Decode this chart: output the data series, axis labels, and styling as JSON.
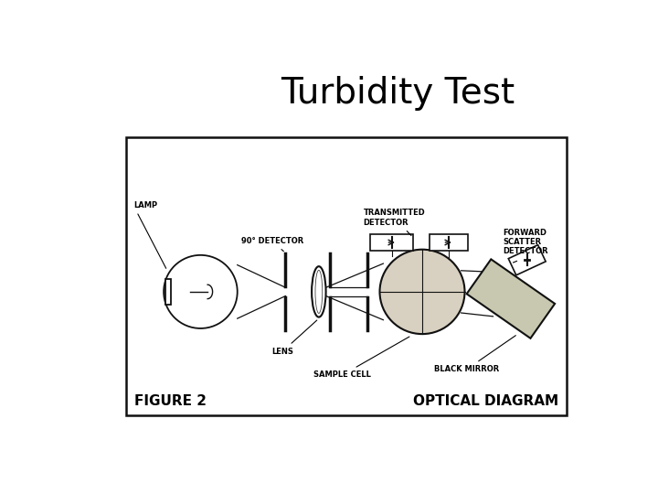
{
  "title": "Turbidity Test",
  "title_fontsize": 28,
  "bg_color": "#ffffff",
  "box_bg": "#ffffff",
  "figure_label": "FIGURE 2",
  "diagram_label": "OPTICAL DIAGRAM",
  "annotation_fontsize": 6.0,
  "label_fontsize": 11
}
